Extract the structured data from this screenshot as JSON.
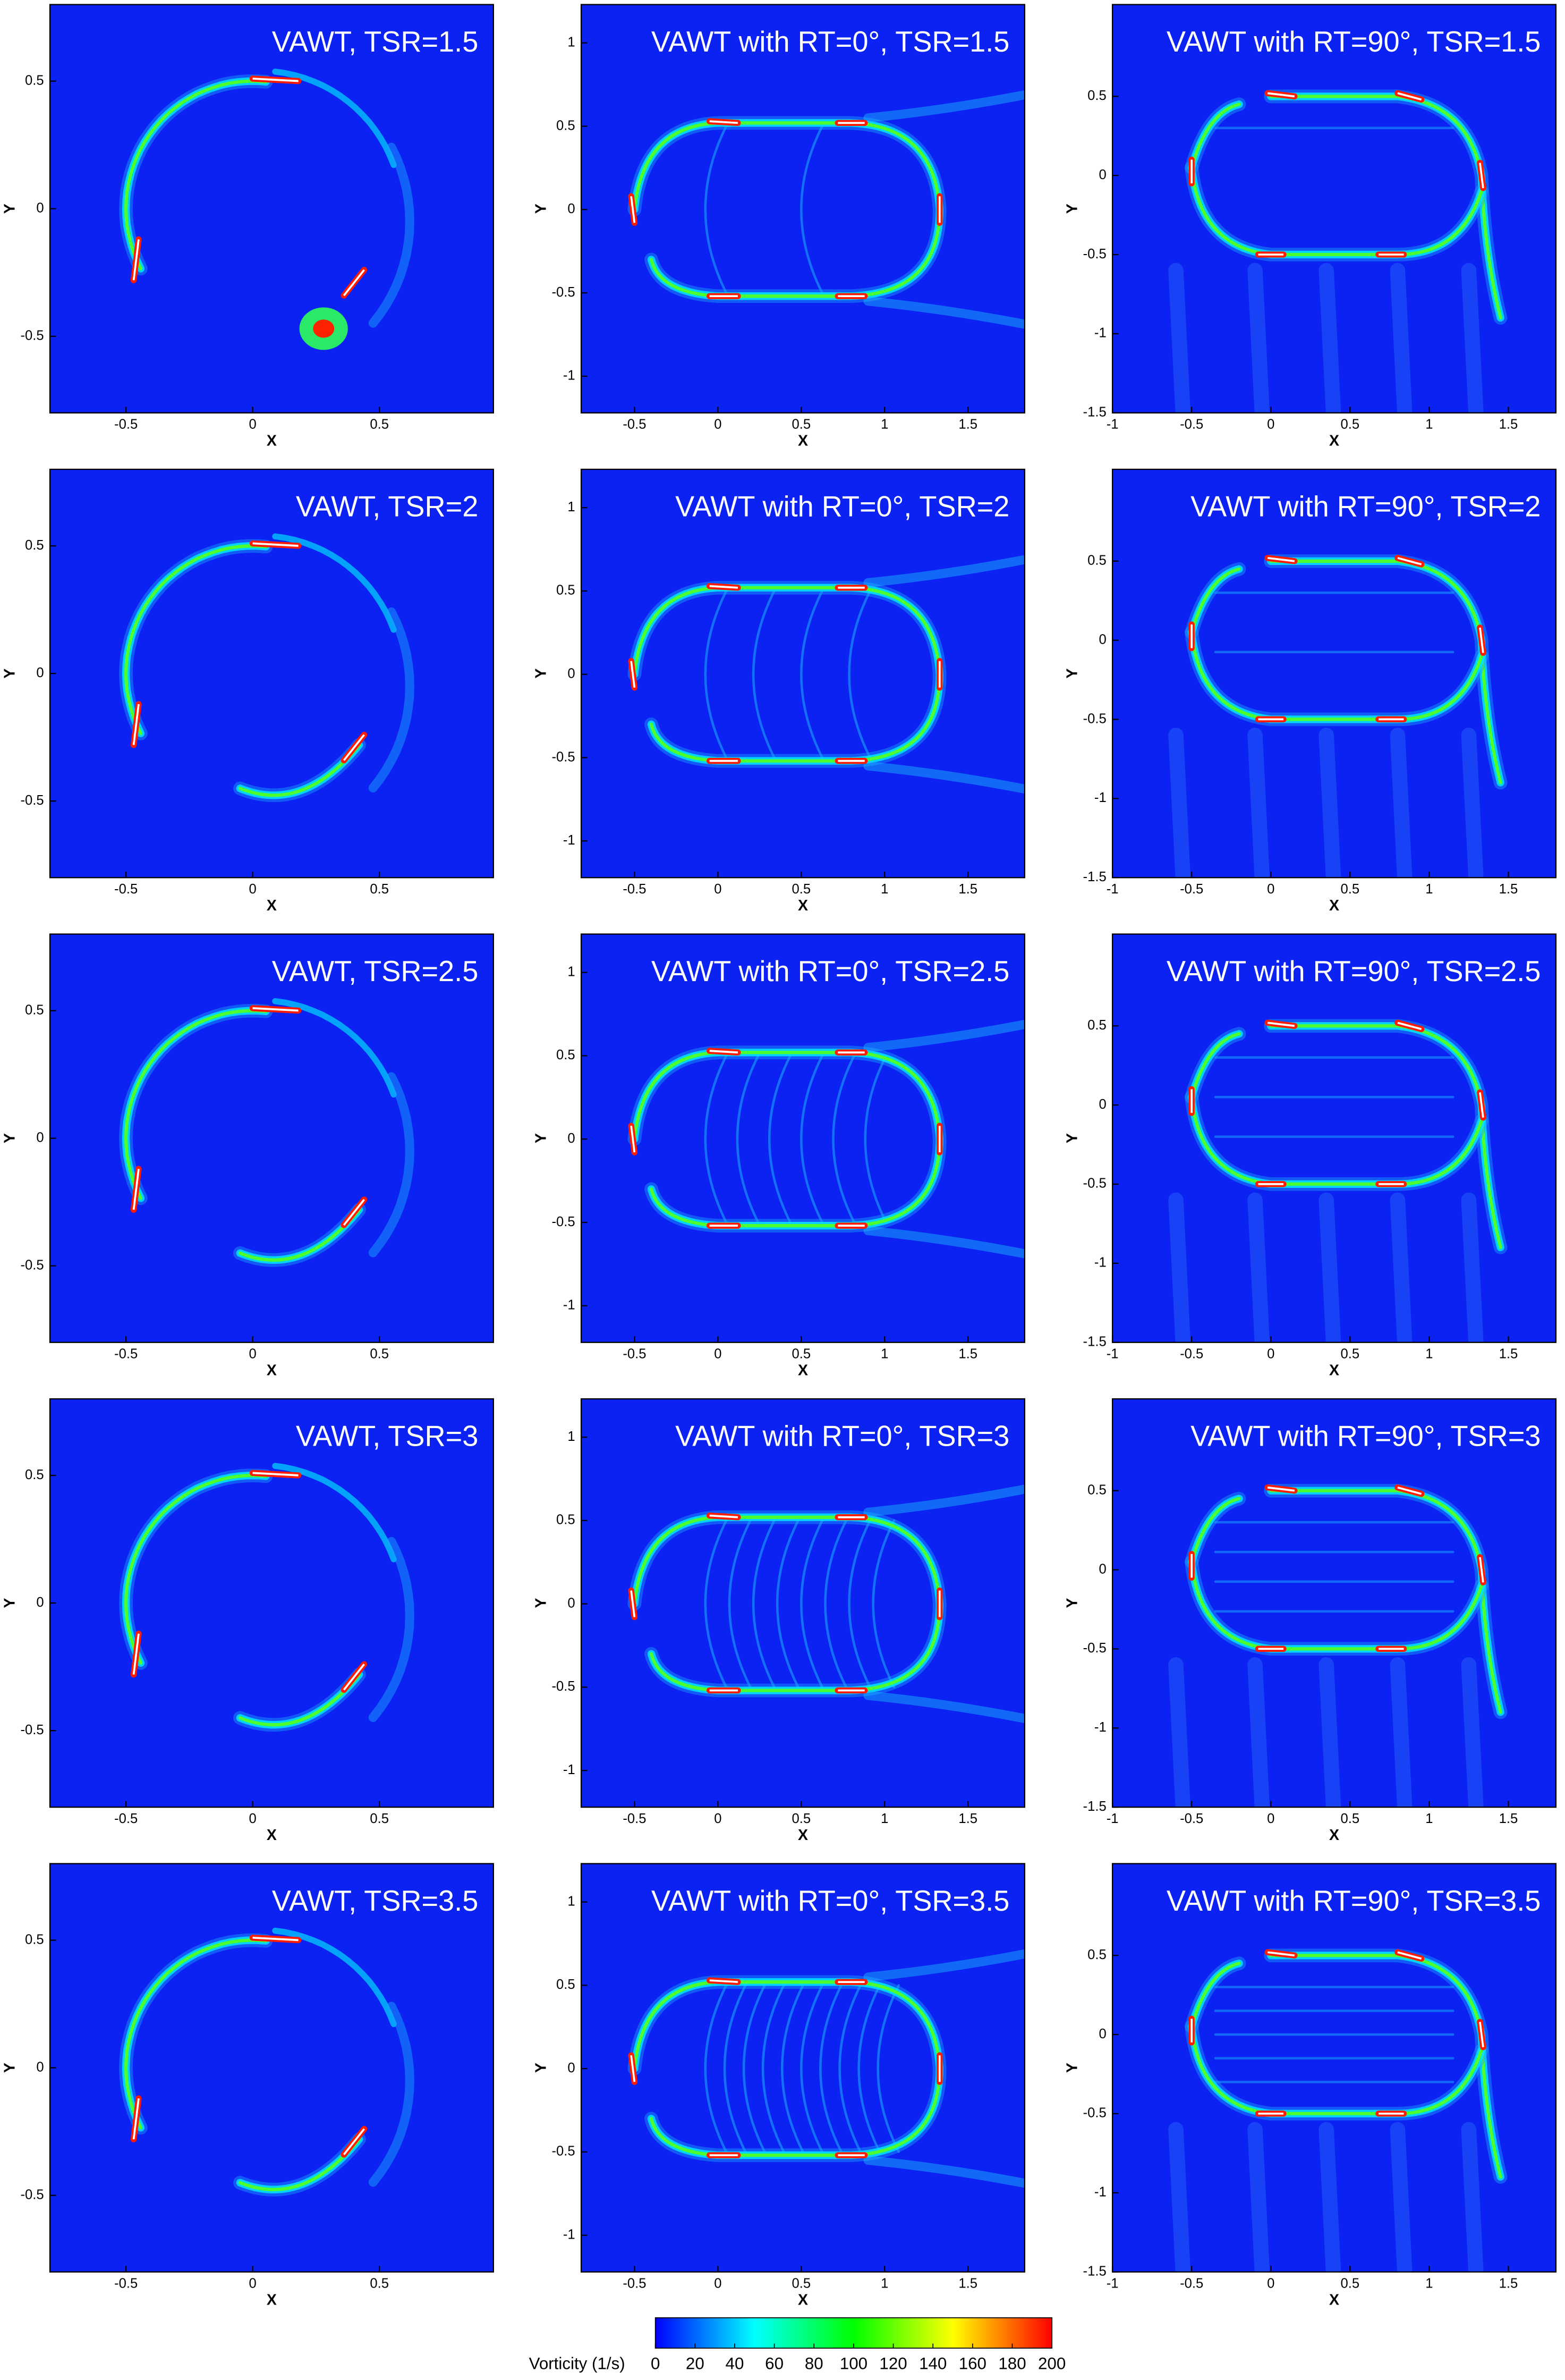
{
  "chart_data": [
    {
      "type": "contour",
      "title": "VAWT, TSR=1.5",
      "xlabel": "X",
      "ylabel": "Y",
      "xlim": [
        -0.8,
        0.95
      ],
      "ylim": [
        -0.8,
        0.8
      ],
      "xticks": [
        -0.5,
        0,
        0.5
      ],
      "yticks": [
        -0.5,
        0,
        0.5
      ]
    },
    {
      "type": "contour",
      "title": "VAWT with RT=0°, TSR=1.5",
      "xlabel": "X",
      "ylabel": "Y",
      "xlim": [
        -0.82,
        1.84
      ],
      "ylim": [
        -1.22,
        1.23
      ],
      "xticks": [
        -0.5,
        0,
        0.5,
        1,
        1.5
      ],
      "yticks": [
        -1,
        -0.5,
        0,
        0.5,
        1
      ]
    },
    {
      "type": "contour",
      "title": "VAWT with RT=90°, TSR=1.5",
      "xlabel": "X",
      "ylabel": "Y",
      "xlim": [
        -1,
        1.8
      ],
      "ylim": [
        -1.5,
        1.08
      ],
      "xticks": [
        -1,
        -0.5,
        0,
        0.5,
        1,
        1.5
      ],
      "yticks": [
        -1.5,
        -1,
        -0.5,
        0,
        0.5
      ]
    },
    {
      "type": "contour",
      "title": "VAWT, TSR=2",
      "xlabel": "X",
      "ylabel": "Y",
      "xlim": [
        -0.8,
        0.95
      ],
      "ylim": [
        -0.8,
        0.8
      ],
      "xticks": [
        -0.5,
        0,
        0.5
      ],
      "yticks": [
        -0.5,
        0,
        0.5
      ]
    },
    {
      "type": "contour",
      "title": "VAWT with RT=0°, TSR=2",
      "xlabel": "X",
      "ylabel": "Y",
      "xlim": [
        -0.82,
        1.84
      ],
      "ylim": [
        -1.22,
        1.23
      ],
      "xticks": [
        -0.5,
        0,
        0.5,
        1,
        1.5
      ],
      "yticks": [
        -1,
        -0.5,
        0,
        0.5,
        1
      ]
    },
    {
      "type": "contour",
      "title": "VAWT with RT=90°, TSR=2",
      "xlabel": "X",
      "ylabel": "Y",
      "xlim": [
        -1,
        1.8
      ],
      "ylim": [
        -1.5,
        1.08
      ],
      "xticks": [
        -1,
        -0.5,
        0,
        0.5,
        1,
        1.5
      ],
      "yticks": [
        -1.5,
        -1,
        -0.5,
        0,
        0.5
      ]
    },
    {
      "type": "contour",
      "title": "VAWT, TSR=2.5",
      "xlabel": "X",
      "ylabel": "Y",
      "xlim": [
        -0.8,
        0.95
      ],
      "ylim": [
        -0.8,
        0.8
      ],
      "xticks": [
        -0.5,
        0,
        0.5
      ],
      "yticks": [
        -0.5,
        0,
        0.5
      ]
    },
    {
      "type": "contour",
      "title": "VAWT with RT=0°, TSR=2.5",
      "xlabel": "X",
      "ylabel": "Y",
      "xlim": [
        -0.82,
        1.84
      ],
      "ylim": [
        -1.22,
        1.23
      ],
      "xticks": [
        -0.5,
        0,
        0.5,
        1,
        1.5
      ],
      "yticks": [
        -1,
        -0.5,
        0,
        0.5,
        1
      ]
    },
    {
      "type": "contour",
      "title": "VAWT with RT=90°, TSR=2.5",
      "xlabel": "X",
      "ylabel": "Y",
      "xlim": [
        -1,
        1.8
      ],
      "ylim": [
        -1.5,
        1.08
      ],
      "xticks": [
        -1,
        -0.5,
        0,
        0.5,
        1,
        1.5
      ],
      "yticks": [
        -1.5,
        -1,
        -0.5,
        0,
        0.5
      ]
    },
    {
      "type": "contour",
      "title": "VAWT, TSR=3",
      "xlabel": "X",
      "ylabel": "Y",
      "xlim": [
        -0.8,
        0.95
      ],
      "ylim": [
        -0.8,
        0.8
      ],
      "xticks": [
        -0.5,
        0,
        0.5
      ],
      "yticks": [
        -0.5,
        0,
        0.5
      ]
    },
    {
      "type": "contour",
      "title": "VAWT with RT=0°, TSR=3",
      "xlabel": "X",
      "ylabel": "Y",
      "xlim": [
        -0.82,
        1.84
      ],
      "ylim": [
        -1.22,
        1.23
      ],
      "xticks": [
        -0.5,
        0,
        0.5,
        1,
        1.5
      ],
      "yticks": [
        -1,
        -0.5,
        0,
        0.5,
        1
      ]
    },
    {
      "type": "contour",
      "title": "VAWT with RT=90°, TSR=3",
      "xlabel": "X",
      "ylabel": "Y",
      "xlim": [
        -1,
        1.8
      ],
      "ylim": [
        -1.5,
        1.08
      ],
      "xticks": [
        -1,
        -0.5,
        0,
        0.5,
        1,
        1.5
      ],
      "yticks": [
        -1.5,
        -1,
        -0.5,
        0,
        0.5
      ]
    },
    {
      "type": "contour",
      "title": "VAWT, TSR=3.5",
      "xlabel": "X",
      "ylabel": "Y",
      "xlim": [
        -0.8,
        0.95
      ],
      "ylim": [
        -0.8,
        0.8
      ],
      "xticks": [
        -0.5,
        0,
        0.5
      ],
      "yticks": [
        -0.5,
        0,
        0.5
      ]
    },
    {
      "type": "contour",
      "title": "VAWT with RT=0°, TSR=3.5",
      "xlabel": "X",
      "ylabel": "Y",
      "xlim": [
        -0.82,
        1.84
      ],
      "ylim": [
        -1.22,
        1.23
      ],
      "xticks": [
        -0.5,
        0,
        0.5,
        1,
        1.5
      ],
      "yticks": [
        -1,
        -0.5,
        0,
        0.5,
        1
      ]
    },
    {
      "type": "contour",
      "title": "VAWT with RT=90°, TSR=3.5",
      "xlabel": "X",
      "ylabel": "Y",
      "xlim": [
        -1,
        1.8
      ],
      "ylim": [
        -1.5,
        1.08
      ],
      "xticks": [
        -1,
        -0.5,
        0,
        0.5,
        1,
        1.5
      ],
      "yticks": [
        -1.5,
        -1,
        -0.5,
        0,
        0.5
      ]
    },
    {
      "type": "colorbar",
      "title": "Vorticity (1/s)",
      "xlim": [
        0,
        200
      ],
      "xticks": [
        0,
        20,
        40,
        60,
        80,
        100,
        120,
        140,
        160,
        180,
        200
      ],
      "colormap": [
        "#0000ff",
        "#00ffff",
        "#00ff00",
        "#ffff00",
        "#ff0000"
      ]
    }
  ]
}
